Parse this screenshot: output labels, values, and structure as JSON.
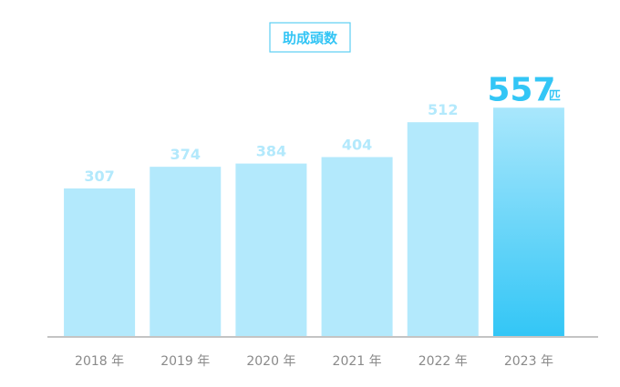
{
  "chart_data": {
    "type": "bar",
    "title": "助成頭数",
    "categories": [
      "2018 年",
      "2019 年",
      "2020 年",
      "2021 年",
      "2022 年",
      "2023 年"
    ],
    "values": [
      307,
      374,
      384,
      404,
      512,
      557
    ],
    "colors": [
      "#b3e9fc",
      "#b3e9fc",
      "#b3e9fc",
      "#b3e9fc",
      "#b3e9fc",
      "#33c6f6"
    ],
    "unit": "匹",
    "ylim": [
      -150,
      600
    ]
  }
}
